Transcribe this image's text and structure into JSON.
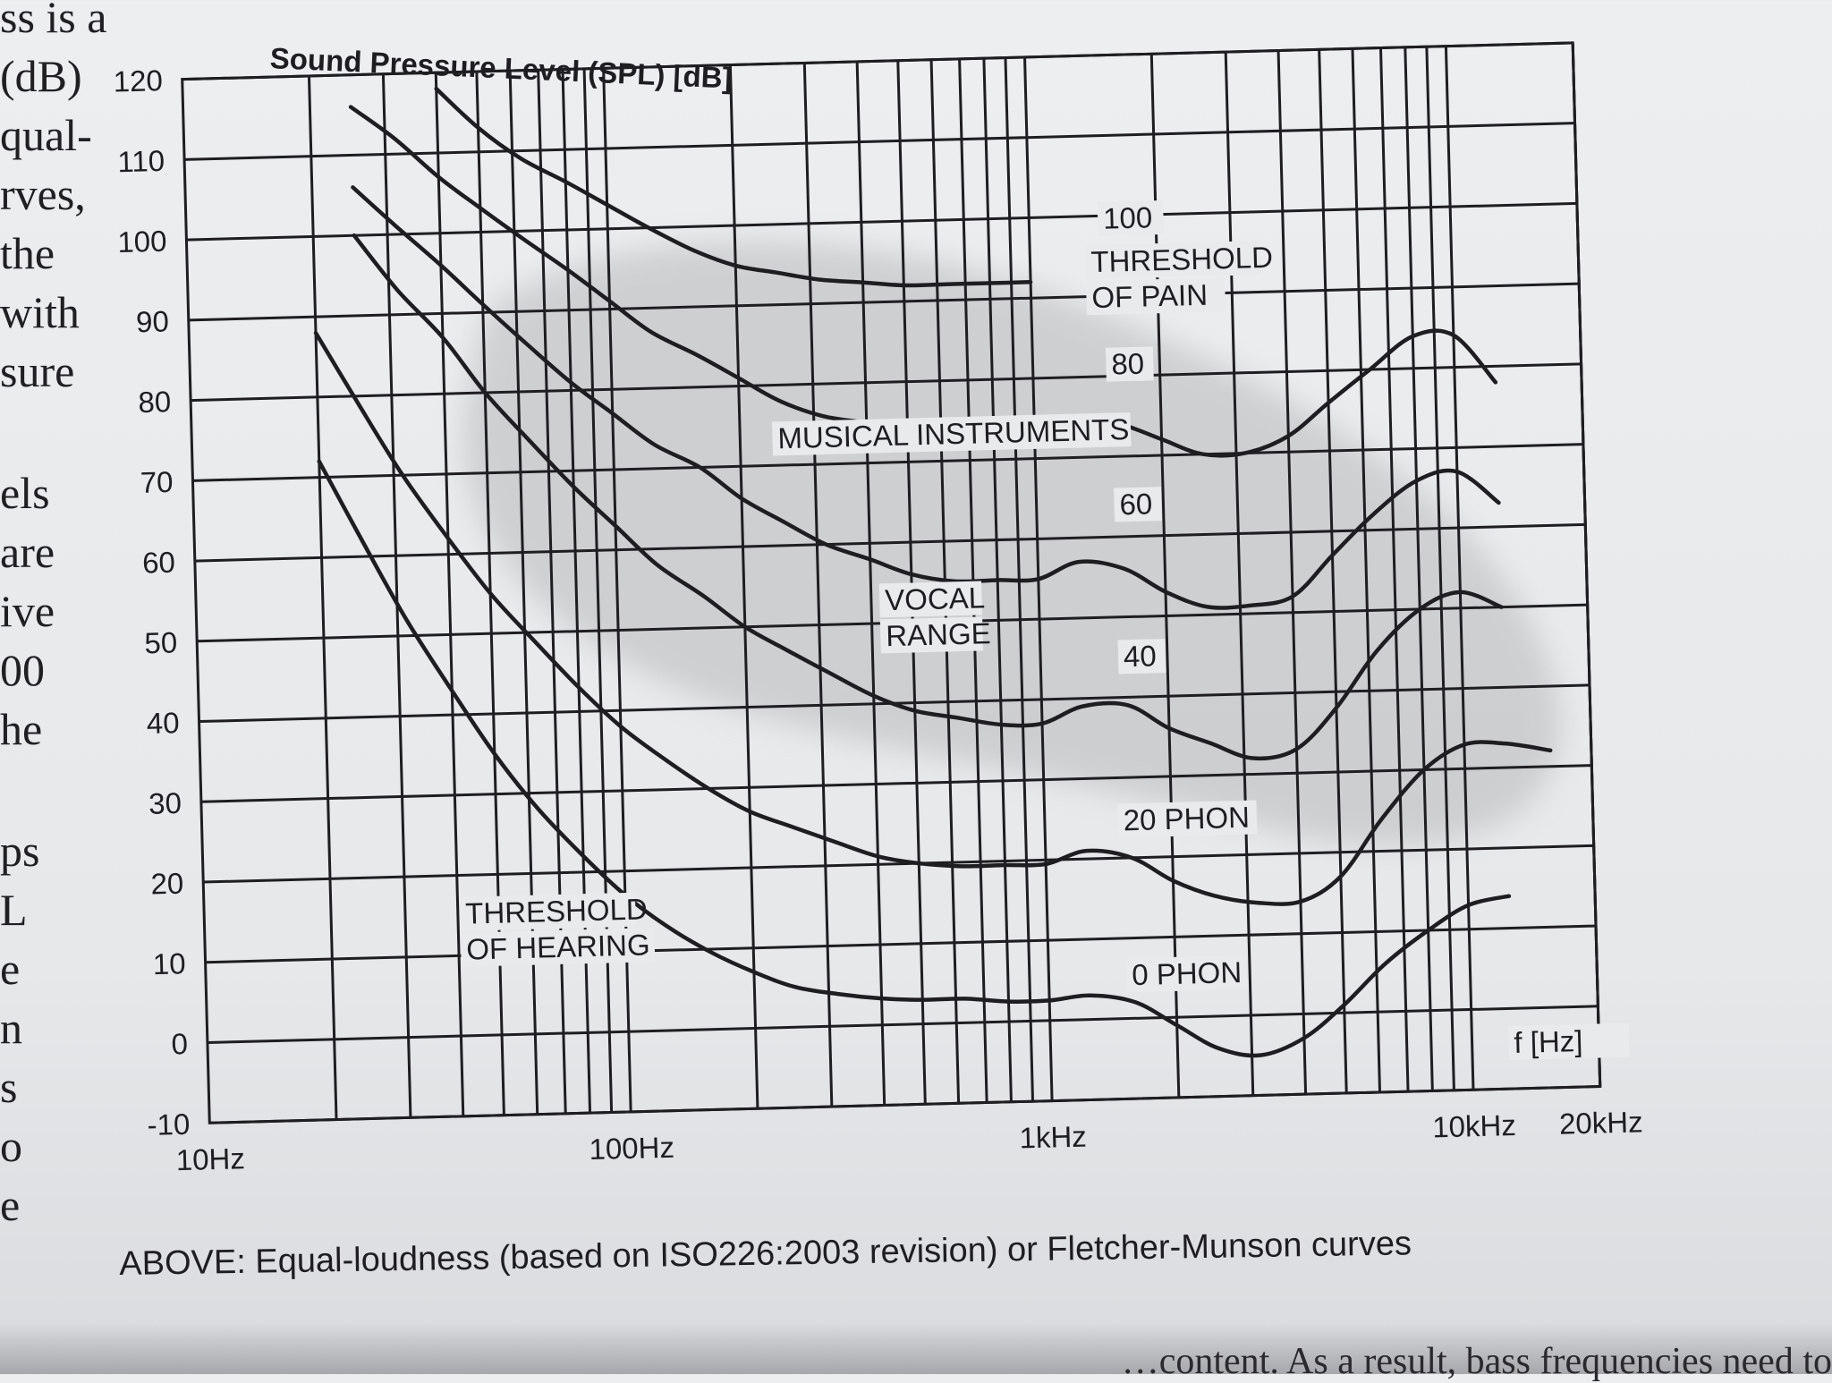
{
  "left_margin_text": [
    "ss is a",
    "(dB)",
    "qual-",
    "rves,",
    "the",
    "with",
    "sure",
    "",
    "els",
    "are",
    "ive",
    "00",
    "he",
    "",
    "ps",
    "L",
    "e",
    "n",
    "s",
    "o",
    "e"
  ],
  "caption": "ABOVE: Equal-loudness (based on ISO226:2003 revision) or Fletcher-Munson curves",
  "bottom_text": "…content. As a result, bass frequencies need to",
  "colors": {
    "paper": "#e8eaec",
    "ink": "#1e1e22",
    "shade": "#b9babc"
  },
  "chart_data": {
    "type": "line",
    "title": "Sound Pressure Level (SPL) [dB]",
    "xlabel": "f [Hz]",
    "ylabel": "Sound Pressure Level (SPL) [dB]",
    "x_scale": "log",
    "xlim": [
      10,
      20000
    ],
    "ylim": [
      -10,
      120
    ],
    "grid": true,
    "y_ticks": [
      -10,
      0,
      10,
      20,
      30,
      40,
      50,
      60,
      70,
      80,
      90,
      100,
      110,
      120
    ],
    "x_tick_labels": [
      {
        "value": 10,
        "label": "10Hz"
      },
      {
        "value": 100,
        "label": "100Hz"
      },
      {
        "value": 1000,
        "label": "1kHz"
      },
      {
        "value": 10000,
        "label": "10kHz"
      },
      {
        "value": 20000,
        "label": "20kHz"
      }
    ],
    "series": [
      {
        "name": "0 PHON",
        "x": [
          20,
          25,
          31.5,
          40,
          50,
          63,
          80,
          100,
          125,
          160,
          200,
          250,
          315,
          400,
          500,
          630,
          800,
          1000,
          1250,
          1600,
          2000,
          2500,
          3150,
          4000,
          5000,
          6300,
          8000,
          10000,
          12500
        ],
        "values": [
          72,
          62,
          52,
          43,
          35,
          28,
          22,
          17,
          13,
          9.5,
          7,
          5,
          4,
          3.3,
          3,
          3,
          2.5,
          2.5,
          3,
          2,
          -1,
          -4,
          -5,
          -3,
          1,
          6,
          10,
          13,
          14
        ]
      },
      {
        "name": "20 PHON",
        "x": [
          20,
          25,
          31.5,
          40,
          50,
          63,
          80,
          100,
          125,
          160,
          200,
          250,
          315,
          400,
          500,
          630,
          800,
          1000,
          1250,
          1600,
          2000,
          2500,
          3150,
          4000,
          5000,
          6300,
          8000,
          10000,
          12500,
          16000
        ],
        "values": [
          88,
          79,
          70,
          62,
          55,
          49,
          43,
          38,
          34,
          30,
          27,
          25,
          23,
          21,
          20,
          19.5,
          19.5,
          19.5,
          21,
          20,
          17,
          15,
          14,
          14,
          17,
          24,
          30,
          33,
          33,
          32
        ]
      },
      {
        "name": "40 PHON",
        "x": [
          25,
          31.5,
          40,
          50,
          63,
          80,
          100,
          125,
          160,
          200,
          250,
          315,
          400,
          500,
          630,
          800,
          1000,
          1250,
          1600,
          2000,
          2500,
          3150,
          4000,
          5000,
          6300,
          8000,
          10000,
          12500
        ],
        "values": [
          100,
          93,
          87,
          80,
          74,
          68,
          63,
          58,
          54,
          50,
          47,
          44,
          41,
          39,
          38,
          37,
          37,
          39,
          39,
          36,
          34,
          32,
          33,
          38,
          45,
          50,
          52,
          50
        ]
      },
      {
        "name": "60 PHON",
        "x": [
          25,
          31.5,
          40,
          50,
          63,
          80,
          100,
          125,
          160,
          200,
          250,
          315,
          400,
          500,
          630,
          800,
          1000,
          1250,
          1600,
          2000,
          2500,
          3150,
          4000,
          5000,
          6300,
          8000,
          10000,
          12500
        ],
        "values": [
          106,
          101,
          96,
          91,
          86,
          81,
          77,
          73,
          70,
          66,
          63,
          60,
          58,
          56,
          55,
          55,
          55,
          57,
          56,
          53,
          51,
          51,
          52,
          57,
          62,
          66,
          67,
          63
        ]
      },
      {
        "name": "80 PHON",
        "x": [
          25,
          31.5,
          40,
          50,
          63,
          80,
          100,
          125,
          160,
          200,
          250,
          315,
          400,
          500,
          630,
          800,
          1000,
          1250,
          1600,
          2000,
          2500,
          3150,
          4000,
          5000,
          6300,
          8000,
          10000,
          12500
        ],
        "values": [
          116,
          112,
          107,
          103,
          99,
          95,
          91,
          87,
          84,
          81,
          78,
          76,
          75,
          74,
          74,
          74,
          74,
          75,
          74,
          72,
          70,
          70,
          72,
          76,
          80,
          84,
          84,
          78
        ]
      },
      {
        "name": "100 PHON",
        "x": [
          40,
          50,
          63,
          80,
          100,
          125,
          160,
          200,
          250,
          315,
          400,
          500,
          630,
          800,
          1000
        ],
        "values": [
          118,
          113,
          109,
          106,
          103,
          100,
          97,
          95,
          94,
          93,
          92.5,
          92,
          92,
          92,
          92
        ]
      }
    ],
    "annotations": {
      "threshold_of_pain": "THRESHOLD\nOF PAIN",
      "musical_instruments": "MUSICAL INSTRUMENTS",
      "vocal_range": "VOCAL\nRANGE",
      "threshold_of_hearing": "THRESHOLD\nOF HEARING",
      "label_100": "100",
      "label_80": "80",
      "label_60": "60",
      "label_40": "40",
      "label_20": "20 PHON",
      "label_0": "0 PHON",
      "x_axis_unit": "f [Hz]"
    }
  }
}
